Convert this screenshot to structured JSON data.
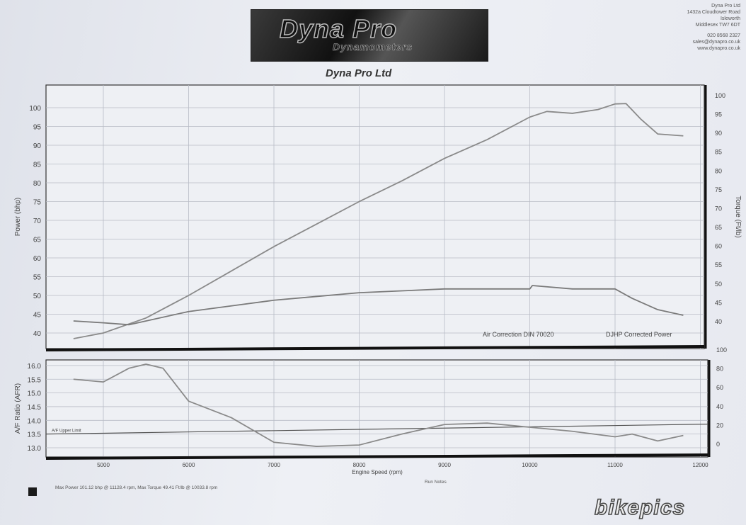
{
  "header": {
    "logo_text": "Dyna Pro",
    "logo_subtext": "Dynamometers",
    "title": "Dyna Pro Ltd",
    "address": [
      "Dyna Pro Ltd",
      "1432a Cloudtower Road",
      "Isleworth",
      "Middlesex TW7 6DT"
    ],
    "contact": [
      "020 8568 2327",
      "sales@dynapro.co.uk",
      "www.dynapro.co.uk"
    ]
  },
  "chart_data": [
    {
      "type": "line",
      "title": "",
      "xlabel": "",
      "ylabel": "Power (bhp)",
      "y2label": "Torque (Ft/lb)",
      "xlim": [
        4350,
        12050
      ],
      "ylim": [
        37,
        107
      ],
      "y2lim": [
        36,
        104
      ],
      "yticks": [
        40,
        45,
        50,
        55,
        60,
        65,
        70,
        75,
        80,
        85,
        90,
        95,
        100
      ],
      "y2ticks": [
        40,
        45,
        50,
        55,
        60,
        65,
        70,
        75,
        80,
        85,
        90,
        95,
        100
      ],
      "grid": true,
      "annotations": [
        "Air Correction DIN 70020",
        "DJHP Corrected Power"
      ],
      "series": [
        {
          "axis": "left",
          "color": "#8a8a8a",
          "x": [
            4650,
            5000,
            5500,
            6000,
            6500,
            7000,
            7500,
            8000,
            8500,
            9000,
            9500,
            10000,
            10200,
            10500,
            10800,
            11000,
            11128,
            11300,
            11500,
            11800
          ],
          "y": [
            38.5,
            40,
            44,
            50,
            56.5,
            63,
            69,
            75,
            80.5,
            86.5,
            91.5,
            97.5,
            99,
            98.5,
            99.5,
            101,
            101.1,
            97,
            93,
            92.5
          ]
        },
        {
          "axis": "right",
          "color": "#7a7a7a",
          "x": [
            4650,
            5000,
            5300,
            6000,
            6500,
            7000,
            7500,
            8000,
            8500,
            9000,
            9500,
            10000,
            10030,
            10500,
            11000,
            11200,
            11500,
            11800
          ],
          "y": [
            40,
            39.5,
            39,
            42.5,
            44,
            45.5,
            46.5,
            47.5,
            48,
            48.5,
            48.5,
            48.5,
            49.4,
            48.5,
            48.5,
            46,
            43,
            41.5
          ]
        }
      ]
    },
    {
      "type": "line",
      "title": "",
      "xlabel": "Engine Speed (rpm)",
      "ylabel": "A/F Ratio (AFR)",
      "xlim": [
        4350,
        12050
      ],
      "ylim": [
        12.9,
        16.3
      ],
      "y2lim": [
        -5,
        100
      ],
      "xticks": [
        5000,
        6000,
        7000,
        8000,
        9000,
        10000,
        11000,
        12000
      ],
      "yticks": [
        "13.0",
        "13.5",
        "14.0",
        "14.5",
        "15.0",
        "15.5",
        "16.0"
      ],
      "y2ticks": [
        0,
        20,
        40,
        60,
        80,
        100
      ],
      "grid": true,
      "reference_line": {
        "label": "A/F Upper Limit",
        "value": 13.5
      },
      "series": [
        {
          "axis": "left",
          "color": "#8a8a8a",
          "x": [
            4650,
            5000,
            5300,
            5500,
            5700,
            6000,
            6500,
            7000,
            7500,
            8000,
            8500,
            9000,
            9500,
            10000,
            10500,
            11000,
            11200,
            11500,
            11800
          ],
          "y": [
            15.5,
            15.4,
            15.9,
            16.05,
            15.9,
            14.7,
            14.1,
            13.2,
            13.05,
            13.1,
            13.5,
            13.85,
            13.9,
            13.75,
            13.6,
            13.4,
            13.5,
            13.25,
            13.45
          ]
        }
      ]
    }
  ],
  "footer": {
    "summary": "Max Power 101.12 bhp @ 11128.4 rpm, Max Torque 49.41 Ft/lb @ 10033.8 rpm",
    "run_notes_label": "Run Notes"
  },
  "watermark": "bikepics"
}
